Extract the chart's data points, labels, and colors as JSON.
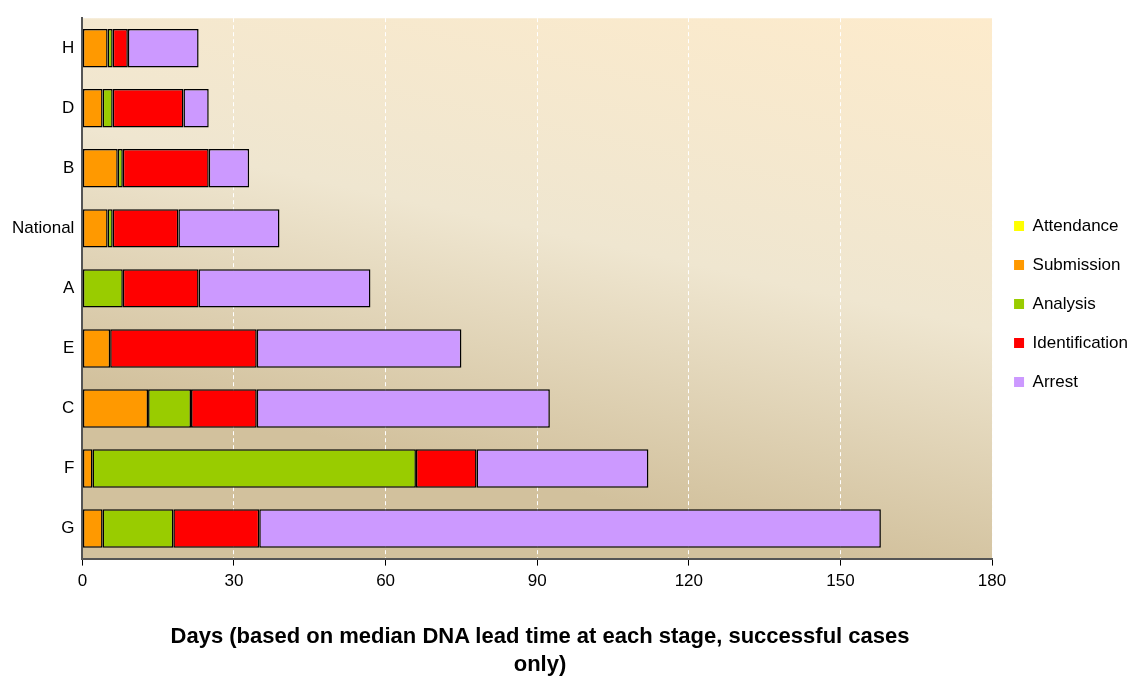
{
  "chart_data": {
    "type": "bar",
    "orientation": "horizontal",
    "stacked": true,
    "xlabel": "Days (based on median DNA lead time at each stage, successful cases only)",
    "categories": [
      "H",
      "D",
      "B",
      "National",
      "A",
      "E",
      "C",
      "F",
      "G"
    ],
    "series": [
      {
        "name": "Attendance",
        "color": "#ffff00",
        "values": [
          0,
          0,
          0,
          0,
          0,
          0,
          0,
          0,
          0
        ]
      },
      {
        "name": "Submission",
        "color": "#ff9900",
        "values": [
          5,
          4,
          7,
          5,
          0,
          5.5,
          13,
          2,
          4
        ]
      },
      {
        "name": "Analysis",
        "color": "#99cc00",
        "values": [
          1,
          2,
          1,
          1,
          8,
          0,
          8.5,
          64,
          14
        ]
      },
      {
        "name": "Identification",
        "color": "#ff0000",
        "values": [
          3,
          14,
          17,
          13,
          15,
          29,
          13,
          12,
          17
        ]
      },
      {
        "name": "Arrest",
        "color": "#cc99ff",
        "values": [
          14,
          5,
          8,
          20,
          34,
          40.5,
          58,
          34,
          123
        ]
      }
    ],
    "xlim": [
      0,
      180
    ],
    "xticks": [
      0,
      30,
      60,
      90,
      120,
      150,
      180
    ],
    "grid": "x",
    "legend": "right"
  }
}
